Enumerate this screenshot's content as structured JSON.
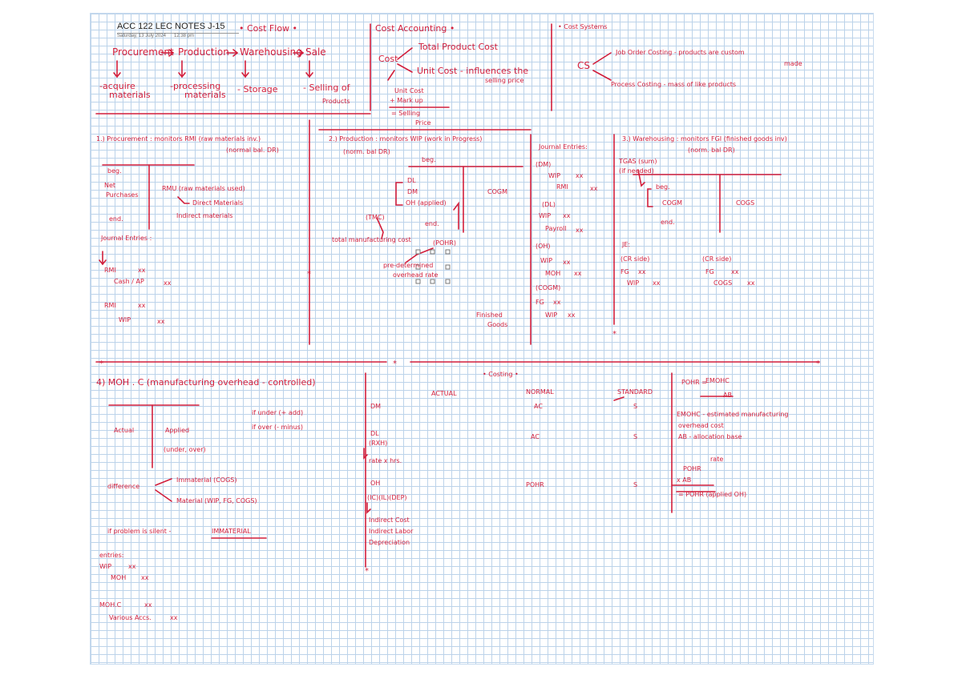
{
  "note": {
    "title": "ACC 122 LEC NOTES J-15",
    "date": "Saturday, 13 July 2024",
    "time": "12:38 pm"
  },
  "ink_color": "#d21f3c",
  "top": {
    "cost_flow": "• Cost Flow •",
    "procurement": "Procurement",
    "production": "Production",
    "warehousing": "Warehousing",
    "sale": "Sale",
    "acquire": "-acquire",
    "materials": "materials",
    "processing": "-processing",
    "processing_materials": "materials",
    "storage": "- Storage",
    "selling_of": "- Selling of",
    "products": "Products",
    "cost_accounting": "Cost Accounting •",
    "cost": "Cost",
    "total_product_cost": "Total Product Cost",
    "unit_cost": "Unit Cost - influences the",
    "selling_price_line": "selling price",
    "unit_cost2": "Unit Cost",
    "mark_up": "+ Mark up",
    "eq_selling": "= Selling",
    "price": "Price",
    "cost_systems": "• Cost Systems",
    "cs": "CS",
    "job_order": "Job Order Costing - products are custom",
    "made": "made",
    "process_costing": "Process Costing - mass of like products"
  },
  "proc": {
    "heading": "1.) Procurement : monitors RMI (raw materials inv.)",
    "normal_bal": "(normal bal. DR)",
    "beg": "beg.",
    "net": "Net",
    "purchases": "Purchases",
    "end": "end.",
    "rmu": "RMU (raw materials used)",
    "direct": "Direct Materials",
    "indirect": "Indirect materials",
    "je": "Journal Entries :",
    "rmi1": "RMI",
    "xx1": "xx",
    "cash_ap": "Cash / AP",
    "xx2": "xx",
    "rmi2": "RMI",
    "xx3": "xx",
    "wip": "WIP",
    "xx4": "xx"
  },
  "prodn": {
    "heading": "2.) Production : monitors WIP (work in Progress)",
    "normal_bal": "(norm. bal DR)",
    "beg": "beg.",
    "dl": "DL",
    "dm": "DM",
    "oh": "OH (applied)",
    "cogm": "COGM",
    "tmc": "(TMC)",
    "end": "end.",
    "total_mfg": "total manufacturing cost",
    "pohr": "(POHR)",
    "predet": "pre-determined",
    "overhead_rate": "overhead rate"
  },
  "je_col": {
    "heading": "Journal Entries:",
    "dm": "(DM)",
    "wip1": "WIP",
    "xx1": "xx",
    "rmi": "RMI",
    "xx2": "xx",
    "dl": "(DL)",
    "wip2": "WIP",
    "xx3": "xx",
    "payroll": "Payroll",
    "xx4": "xx",
    "oh": "(OH)",
    "wip3": "WIP",
    "xx5": "xx",
    "moh": "MOH",
    "xx6": "xx",
    "cogm": "(COGM)",
    "fg": "FG",
    "xx7": "xx",
    "wip4": "WIP",
    "xx8": "xx",
    "finished": "Finished",
    "goods": "Goods"
  },
  "wh": {
    "heading": "3.) Warehousing : monitors FGI (finished goods inv)",
    "normal_bal": "(norm. bal DR)",
    "tgas": "TGAS (sum)",
    "if_needed": "(if needed)",
    "beg": "beg.",
    "cogm": "COGM",
    "cogs": "COGS",
    "end": "end.",
    "je": "JE:",
    "cr_side1": "(CR side)",
    "fg1": "FG",
    "xx1": "xx",
    "wip": "WIP",
    "xx2": "xx",
    "cr_side2": "(CR side)",
    "fg2": "FG",
    "xx3": "xx",
    "cogs2": "COGS",
    "xx4": "xx"
  },
  "moh": {
    "heading": "4) MOH . C (manufacturing overhead - controlled)",
    "actual": "Actual",
    "applied": "Applied",
    "under_over": "(under, over)",
    "if_under": "if under (+ add)",
    "if_over": "if over (- minus)",
    "difference": "difference",
    "immaterial": "Immaterial (COGS)",
    "material": "Material (WIP, FG, COGS)",
    "silent": "if problem is silent -",
    "immaterial_caps": "IMMATERIAL",
    "entries": "entries:",
    "wip": "WIP",
    "xx1": "xx",
    "moh2": "MOH",
    "xx2": "xx",
    "mohc": "MOH.C",
    "xx3": "xx",
    "various": "Various Accs.",
    "xx4": "xx"
  },
  "costing": {
    "title": "• Costing •",
    "actual": "ACTUAL",
    "normal": "NORMAL",
    "standard": "STANDARD",
    "dm": "DM",
    "dm_normal": "AC",
    "dm_std": "S",
    "dl": "DL",
    "rxh": "(RXH)",
    "rate": "rate x hrs.",
    "dl_normal": "AC",
    "dl_std": "S",
    "oh": "OH",
    "ic_il_dep": "(IC)(IL)(DEP)",
    "indirect_cost": "Indirect Cost",
    "indirect_labor": "Indirect Labor",
    "depreciation": "Depreciation",
    "oh_normal": "POHR",
    "oh_std": "S"
  },
  "formula": {
    "pohr_eq": "POHR =",
    "emohc": "EMOHC",
    "ab": "AB",
    "emohc_def1": "EMOHC - estimated manufacturing",
    "emohc_def2": "overhead cost",
    "ab_def": "AB - allocation base",
    "rate": "rate",
    "pohr": "POHR",
    "x_ab": "x AB",
    "applied": "= POHR (applied OH)"
  }
}
